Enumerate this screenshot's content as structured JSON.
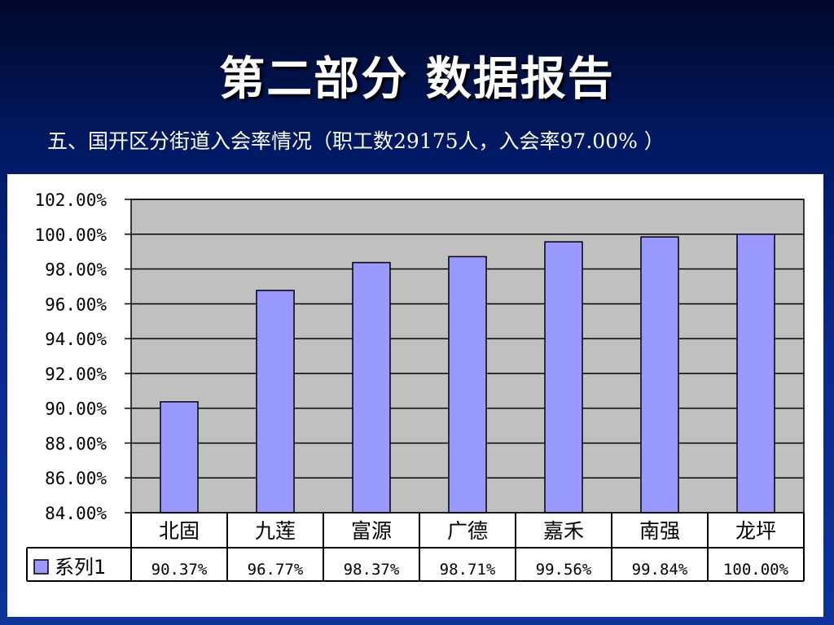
{
  "slide": {
    "title": "第二部分  数据报告",
    "subtitle": "五、国开区分街道入会率情况（职工数29175人，入会率97.00% ）"
  },
  "colors": {
    "bar_fill": "#9999ff",
    "plot_bg": "#c0c0c0",
    "panel_bg": "#ffffff"
  },
  "chart_data": {
    "type": "bar",
    "title": "",
    "xlabel": "",
    "ylabel": "",
    "ylim": [
      84,
      102
    ],
    "grid": true,
    "legend": "data-table-left",
    "y_ticks": [
      "102.00%",
      "100.00%",
      "98.00%",
      "96.00%",
      "94.00%",
      "92.00%",
      "90.00%",
      "88.00%",
      "86.00%",
      "84.00%"
    ],
    "categories": [
      "北固",
      "九莲",
      "富源",
      "广德",
      "嘉禾",
      "南强",
      "龙坪"
    ],
    "series": [
      {
        "name": "系列1",
        "values": [
          90.37,
          96.77,
          98.37,
          98.71,
          99.56,
          99.84,
          100.0
        ],
        "labels": [
          "90.37%",
          "96.77%",
          "98.37%",
          "98.71%",
          "99.56%",
          "99.84%",
          "100.00%"
        ]
      }
    ]
  }
}
